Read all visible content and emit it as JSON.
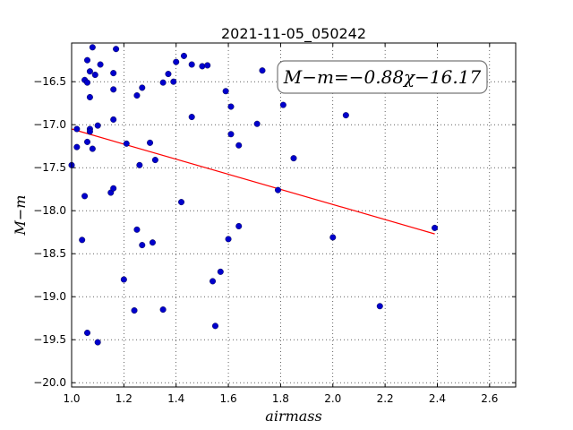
{
  "chart_data": {
    "type": "scatter",
    "title": "2021-11-05_050242",
    "xlabel": "airmass",
    "ylabel": "M−m",
    "xlim": [
      1.0,
      2.7
    ],
    "ylim": [
      -20.05,
      -16.05
    ],
    "y_inverted": true,
    "grid": true,
    "x_ticks": [
      1.0,
      1.2,
      1.4,
      1.6,
      1.8,
      2.0,
      2.2,
      2.4,
      2.6
    ],
    "x_tick_labels": [
      "1.0",
      "1.2",
      "1.4",
      "1.6",
      "1.8",
      "2.0",
      "2.2",
      "2.4",
      "2.6"
    ],
    "y_ticks": [
      -16.5,
      -17.0,
      -17.5,
      -18.0,
      -18.5,
      -19.0,
      -19.5,
      -20.0
    ],
    "y_tick_labels": [
      "−16.5",
      "−17.0",
      "−17.5",
      "−18.0",
      "−18.5",
      "−19.0",
      "−19.5",
      "−20.0"
    ],
    "annotation": "M−m=−0.88χ−16.17",
    "point_color": "#0000cc",
    "fit_color": "#ff0000",
    "points": [
      [
        1.0,
        -17.47
      ],
      [
        1.02,
        -17.05
      ],
      [
        1.02,
        -17.26
      ],
      [
        1.04,
        -18.34
      ],
      [
        1.05,
        -17.83
      ],
      [
        1.05,
        -16.48
      ],
      [
        1.06,
        -16.51
      ],
      [
        1.06,
        -16.25
      ],
      [
        1.07,
        -16.68
      ],
      [
        1.06,
        -17.2
      ],
      [
        1.07,
        -17.05
      ],
      [
        1.07,
        -16.38
      ],
      [
        1.07,
        -17.08
      ],
      [
        1.08,
        -17.28
      ],
      [
        1.08,
        -16.1
      ],
      [
        1.09,
        -16.42
      ],
      [
        1.1,
        -17.01
      ],
      [
        1.11,
        -16.3
      ],
      [
        1.06,
        -19.42
      ],
      [
        1.1,
        -19.53
      ],
      [
        1.15,
        -17.79
      ],
      [
        1.16,
        -17.74
      ],
      [
        1.16,
        -16.4
      ],
      [
        1.16,
        -16.59
      ],
      [
        1.16,
        -16.94
      ],
      [
        1.17,
        -16.12
      ],
      [
        1.2,
        -18.8
      ],
      [
        1.21,
        -17.22
      ],
      [
        1.24,
        -19.16
      ],
      [
        1.25,
        -16.66
      ],
      [
        1.25,
        -18.22
      ],
      [
        1.26,
        -17.47
      ],
      [
        1.27,
        -16.57
      ],
      [
        1.27,
        -18.4
      ],
      [
        1.3,
        -17.21
      ],
      [
        1.31,
        -18.37
      ],
      [
        1.32,
        -17.41
      ],
      [
        1.35,
        -16.51
      ],
      [
        1.35,
        -19.15
      ],
      [
        1.37,
        -16.41
      ],
      [
        1.39,
        -16.5
      ],
      [
        1.4,
        -16.27
      ],
      [
        1.42,
        -17.9
      ],
      [
        1.43,
        -16.2
      ],
      [
        1.46,
        -16.3
      ],
      [
        1.46,
        -16.91
      ],
      [
        1.5,
        -16.32
      ],
      [
        1.52,
        -16.31
      ],
      [
        1.54,
        -18.82
      ],
      [
        1.55,
        -19.34
      ],
      [
        1.57,
        -18.71
      ],
      [
        1.59,
        -16.61
      ],
      [
        1.6,
        -18.33
      ],
      [
        1.61,
        -16.79
      ],
      [
        1.61,
        -17.11
      ],
      [
        1.64,
        -17.24
      ],
      [
        1.64,
        -18.18
      ],
      [
        1.71,
        -16.99
      ],
      [
        1.73,
        -16.37
      ],
      [
        1.79,
        -17.76
      ],
      [
        1.81,
        -16.77
      ],
      [
        1.85,
        -17.39
      ],
      [
        2.0,
        -18.31
      ],
      [
        2.05,
        -16.89
      ],
      [
        2.18,
        -19.11
      ],
      [
        2.39,
        -18.2
      ]
    ],
    "fit_line": {
      "x": [
        1.0,
        2.39
      ],
      "y": [
        -17.05,
        -18.27
      ]
    }
  }
}
